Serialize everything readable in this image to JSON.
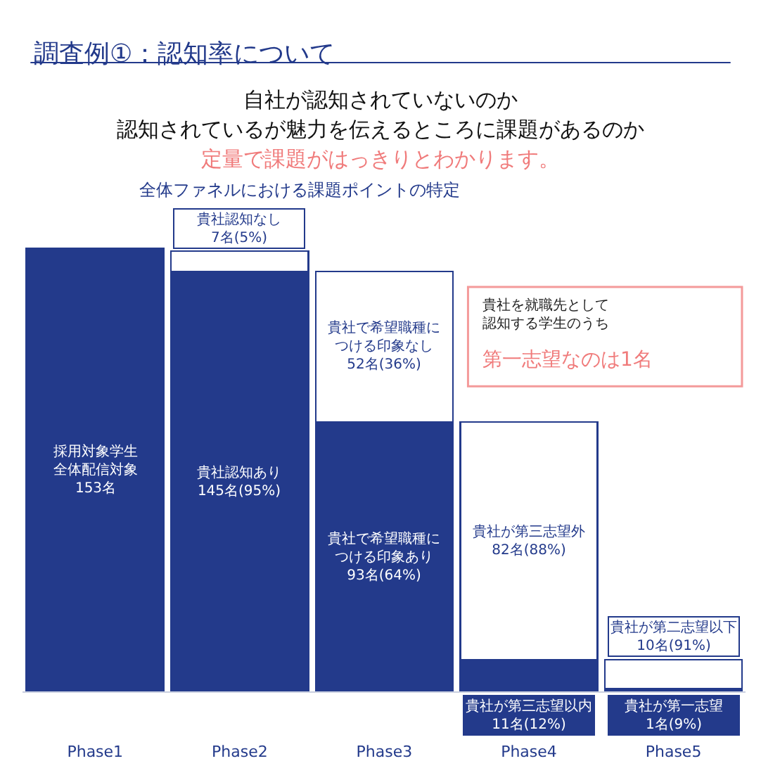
{
  "chart_data": {
    "type": "bar",
    "stacked": true,
    "tick_labels": "x",
    "title": "調査例①：認知率について",
    "subtitle": "自社が認知されていないのか",
    "annotations": [
      "認知されているが魅力を伝えるところに課題があるのか",
      "定量で課題がはっきりとわかります。",
      "全体ファネルにおける課題ポイントの特定",
      "貴社を就職先として認知する学生のうち",
      "第一志望なのは1名"
    ],
    "categories": [
      "Phase1",
      "Phase2",
      "Phase3",
      "Phase4",
      "Phase5"
    ],
    "series": [
      {
        "color": "#233a8b",
        "values": [
          153,
          145,
          93,
          11,
          1
        ],
        "value_labels": [
          "採用対象学生全体配信対象153名",
          "貴社認知あり145名(95%)",
          "貴社で希望職種につける印象あり93名(64%)",
          "貴社が第三志望以内11名(12%)",
          "貴社が第一志望 1名(9%)"
        ]
      },
      {
        "color": "#ffffff",
        "values": [
          null,
          7,
          52,
          82,
          10
        ],
        "value_labels": [
          null,
          "貴社認知なし7名(5%)",
          "貴社で希望職種につける印象なし52名(36%)",
          "貴社が第三志望外82名(88%)",
          "貴社が第二志望以下 10名(91%)"
        ]
      }
    ]
  }
}
